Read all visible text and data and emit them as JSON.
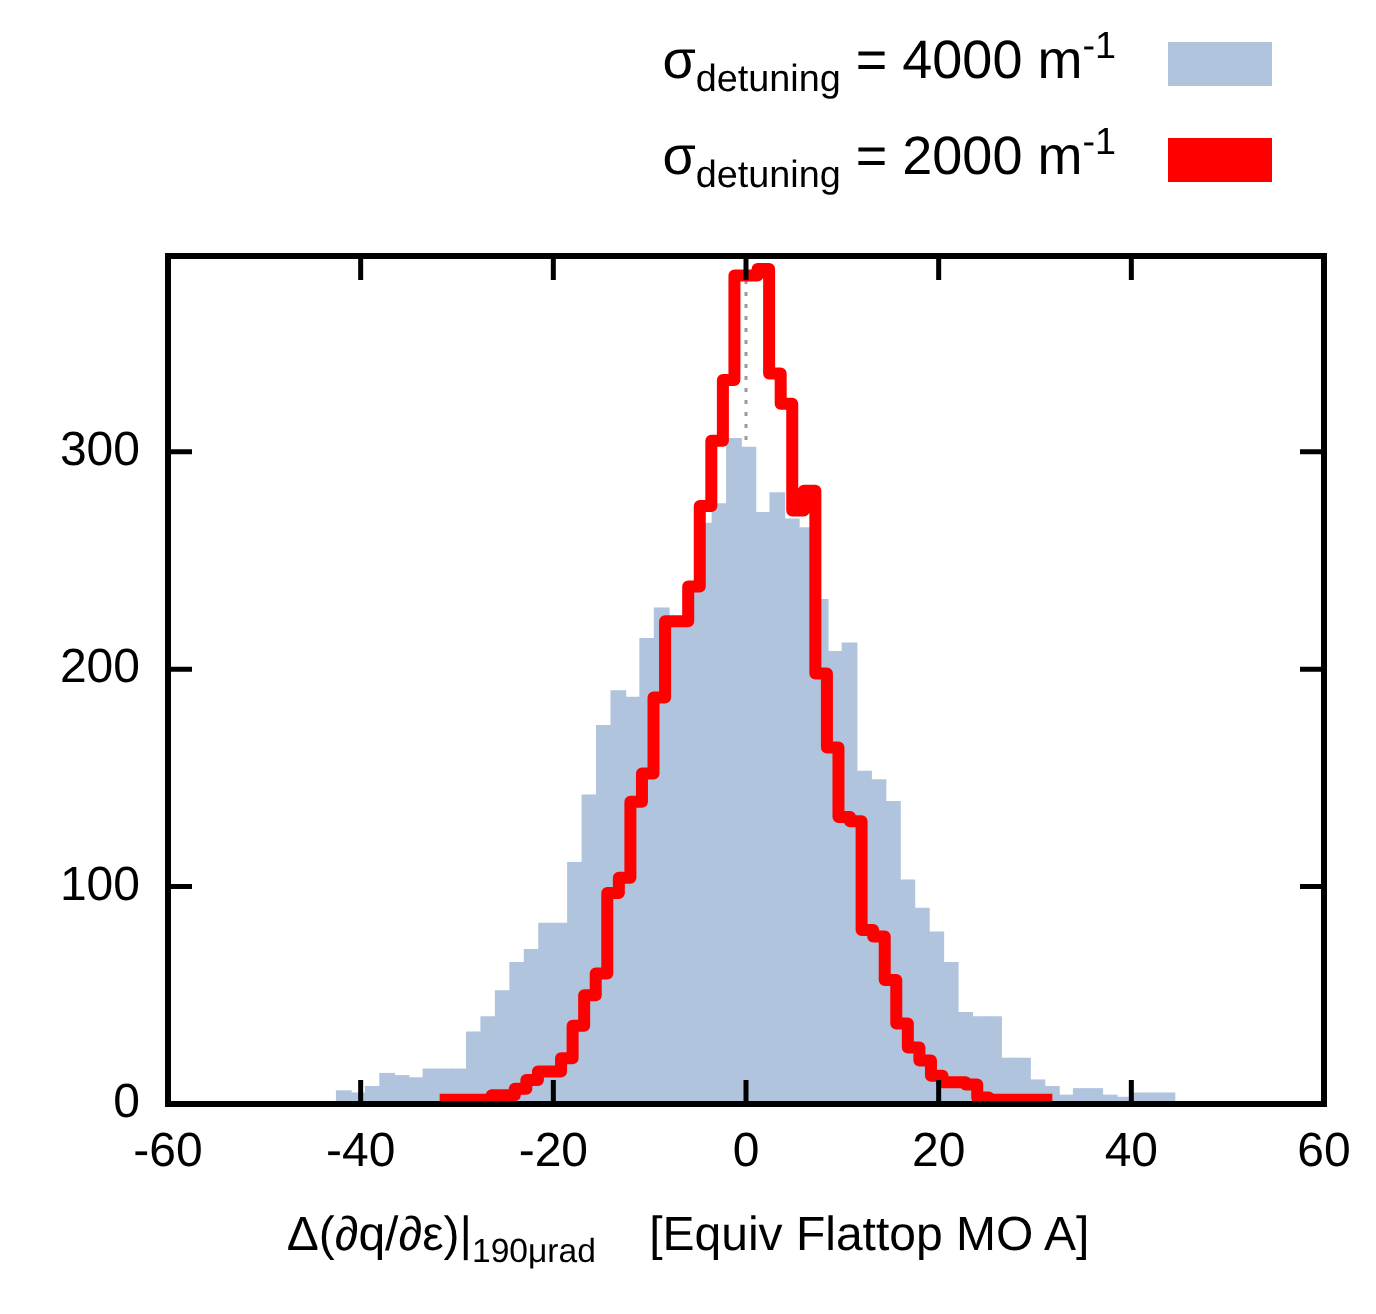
{
  "chart_data": {
    "type": "histogram",
    "xlabel": "Δ(∂q/∂ε)|$_{190μrad}$    [Equiv Flattop MO A]",
    "xlim": [
      -60,
      60
    ],
    "xticks": [
      -60,
      -40,
      -20,
      0,
      20,
      40,
      60
    ],
    "ylim": [
      0,
      390
    ],
    "yticks": [
      0,
      100,
      200,
      300
    ],
    "legend": "top right",
    "ref_lines": [
      {
        "axis": "x",
        "value": 0,
        "color": "#999999",
        "line_style": "dotted"
      }
    ],
    "bins": [
      -42.5,
      -41,
      -39.5,
      -38,
      -36.5,
      -35,
      -33.5,
      -32,
      -30.5,
      -29,
      -27.5,
      -26,
      -24.5,
      -23,
      -21.5,
      -20,
      -18.5,
      -17,
      -15.5,
      -14,
      -12.5,
      -11,
      -9.5,
      -8,
      -6.5,
      -5,
      -3.5,
      -2,
      -0.5,
      1,
      2.5,
      4,
      5.5,
      7,
      8.5,
      10,
      11.5,
      13,
      14.5,
      16,
      17.5,
      19,
      20.5,
      22,
      23.5,
      25,
      26.5,
      28,
      29.5,
      31,
      32.5,
      34,
      35.5,
      37,
      38.5,
      40,
      41.5,
      43,
      44.5
    ],
    "series": [
      {
        "name": "σ$_{detuning}$ = 4000 m$^{-1}$",
        "color": "#b0c4de",
        "values": [
          6,
          5,
          8,
          14,
          13,
          12,
          16,
          16,
          16,
          33,
          40,
          52,
          65,
          71,
          83,
          83,
          111,
          142,
          174,
          190,
          187,
          214,
          228,
          221,
          236,
          267,
          276,
          306,
          302,
          272,
          281,
          269,
          265,
          232,
          208,
          212,
          153,
          149,
          139,
          103,
          90,
          79,
          65,
          42,
          40,
          40,
          21,
          21,
          11,
          8,
          4,
          7,
          7,
          4,
          3,
          5,
          5,
          5
        ]
      },
      {
        "name": "σ$_{detuning}$ = 2000 m$^{-1}$",
        "color": "#ff0000",
        "type": "step",
        "x": [
          -31.8,
          -30.6,
          -29.4,
          -28.2,
          -27,
          -25.8,
          -24.6,
          -23.4,
          -22.2,
          -21,
          -19.8,
          -18.6,
          -17.4,
          -16.2,
          -15,
          -13.8,
          -12.6,
          -11.4,
          -10.2,
          -9,
          -7.8,
          -6.6,
          -5.4,
          -4.2,
          -3,
          -1.8,
          -0.6,
          0.6,
          1.8,
          3,
          4.2,
          5.4,
          6.6,
          7.8,
          9,
          10.2,
          11.4,
          12.6,
          13.8,
          15,
          16.2,
          17.4,
          18.6,
          19.8,
          21,
          22.2,
          23.4,
          24.6,
          25.8,
          27,
          28.2,
          29.4,
          30.6,
          31.8
        ],
        "values": [
          2,
          2,
          2,
          2,
          2,
          4,
          4,
          7,
          11,
          15,
          15,
          21,
          36,
          50,
          60,
          97,
          104,
          139,
          152,
          187,
          222,
          222,
          238,
          275,
          305,
          333,
          381,
          381,
          384,
          336,
          322,
          273,
          282,
          198,
          164,
          132,
          130,
          80,
          77,
          57,
          37,
          26,
          20,
          13,
          10,
          10,
          9,
          3,
          2,
          2,
          2,
          2,
          2,
          2
        ]
      }
    ]
  }
}
